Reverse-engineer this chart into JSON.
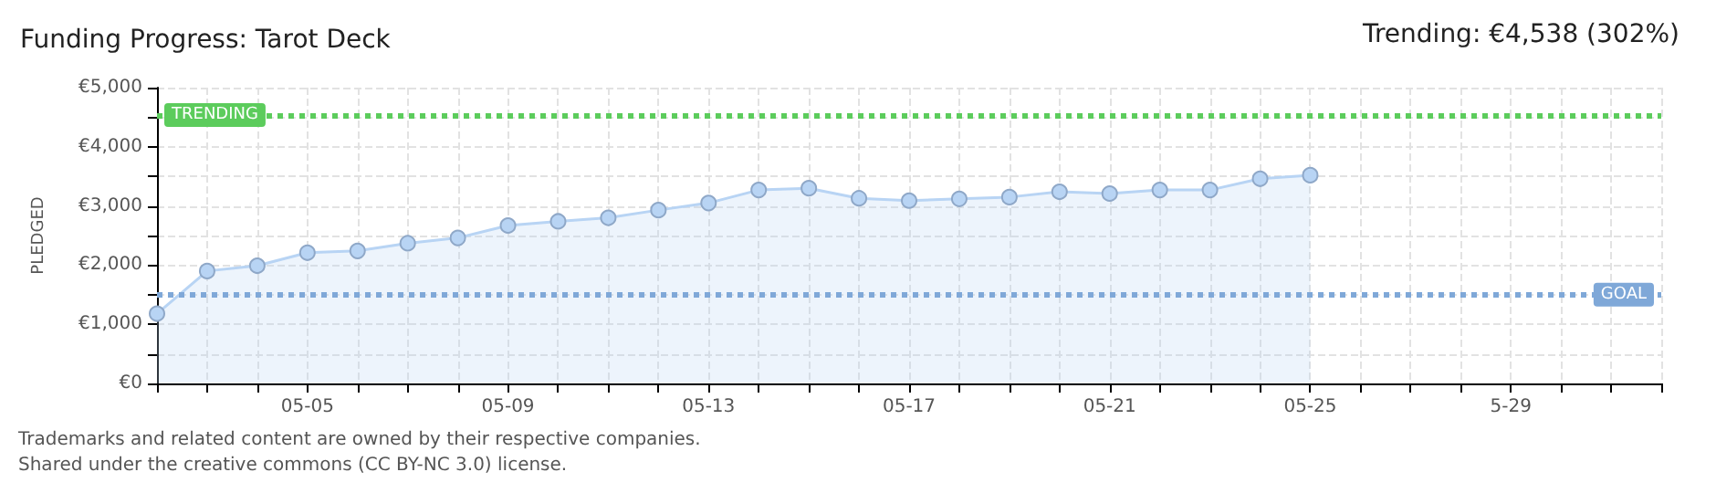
{
  "chart_data": {
    "type": "area",
    "title": "Funding Progress: Tarot Deck",
    "subtitle": "Trending: €4,538 (302%)",
    "ylabel": "PLEDGED",
    "x": [
      "--05-02",
      "--05-03",
      "--05-04",
      "--05-05",
      "--05-06",
      "--05-07",
      "--05-08",
      "--05-09",
      "--05-10",
      "--05-11",
      "--05-12",
      "--05-13",
      "--05-14",
      "--05-15",
      "--05-16",
      "--05-17",
      "--05-18",
      "--05-19",
      "--05-20",
      "--05-21",
      "--05-22",
      "--05-23",
      "--05-24",
      "--05-25"
    ],
    "series": [
      {
        "color": "#b8d4f4",
        "values": [
          1180,
          1900,
          1990,
          2210,
          2240,
          2370,
          2460,
          2670,
          2740,
          2800,
          2930,
          3050,
          3270,
          3300,
          3130,
          3090,
          3120,
          3150,
          3240,
          3210,
          3270,
          3270,
          3460,
          3520
        ]
      }
    ],
    "xlim": [
      "--05-02",
      "--06-01"
    ],
    "xticks": [
      {
        "value": "--05-02",
        "label": null
      },
      {
        "value": "--05-03",
        "label": null
      },
      {
        "value": "--05-04",
        "label": null
      },
      {
        "value": "--05-05",
        "label": "05-05"
      },
      {
        "value": "--05-06",
        "label": null
      },
      {
        "value": "--05-07",
        "label": null
      },
      {
        "value": "--05-08",
        "label": null
      },
      {
        "value": "--05-09",
        "label": "05-09"
      },
      {
        "value": "--05-10",
        "label": null
      },
      {
        "value": "--05-11",
        "label": null
      },
      {
        "value": "--05-12",
        "label": null
      },
      {
        "value": "--05-13",
        "label": "05-13"
      },
      {
        "value": "--05-14",
        "label": null
      },
      {
        "value": "--05-15",
        "label": null
      },
      {
        "value": "--05-16",
        "label": null
      },
      {
        "value": "--05-17",
        "label": "05-17"
      },
      {
        "value": "--05-18",
        "label": null
      },
      {
        "value": "--05-19",
        "label": null
      },
      {
        "value": "--05-20",
        "label": null
      },
      {
        "value": "--05-21",
        "label": "05-21"
      },
      {
        "value": "--05-22",
        "label": null
      },
      {
        "value": "--05-23",
        "label": null
      },
      {
        "value": "--05-24",
        "label": null
      },
      {
        "value": "--05-25",
        "label": "05-25"
      },
      {
        "value": "--05-26",
        "label": null
      },
      {
        "value": "--05-27",
        "label": null
      },
      {
        "value": "--05-28",
        "label": null
      },
      {
        "value": "--05-29",
        "label": "5-29"
      },
      {
        "value": "--05-30",
        "label": null
      },
      {
        "value": "--05-31",
        "label": null
      },
      {
        "value": "--06-01",
        "label": null
      }
    ],
    "ylim": [
      0,
      5000
    ],
    "yticks": [
      {
        "value": 0,
        "label": "€0"
      },
      {
        "value": 500,
        "label": null
      },
      {
        "value": 1000,
        "label": "€1,000"
      },
      {
        "value": 1500,
        "label": null
      },
      {
        "value": 2000,
        "label": "€2,000"
      },
      {
        "value": 2500,
        "label": null
      },
      {
        "value": 3000,
        "label": "€3,000"
      },
      {
        "value": 3500,
        "label": null
      },
      {
        "value": 4000,
        "label": "€4,000"
      },
      {
        "value": 4500,
        "label": null
      },
      {
        "value": 5000,
        "label": "€5,000"
      }
    ],
    "ref_lines": [
      {
        "axis": "y",
        "value": 4538,
        "label": "TRENDING",
        "color": "#5ccc5c",
        "line_style": "dotted"
      },
      {
        "axis": "y",
        "value": 1500,
        "label": "GOAL",
        "color": "#7fa8d8",
        "line_style": "dotted"
      }
    ],
    "grid": true,
    "marker": "circle",
    "annotations": [
      "Trademarks and related content are owned by their respective companies.",
      "Shared under the creative commons (CC BY-NC 3.0) license."
    ]
  }
}
